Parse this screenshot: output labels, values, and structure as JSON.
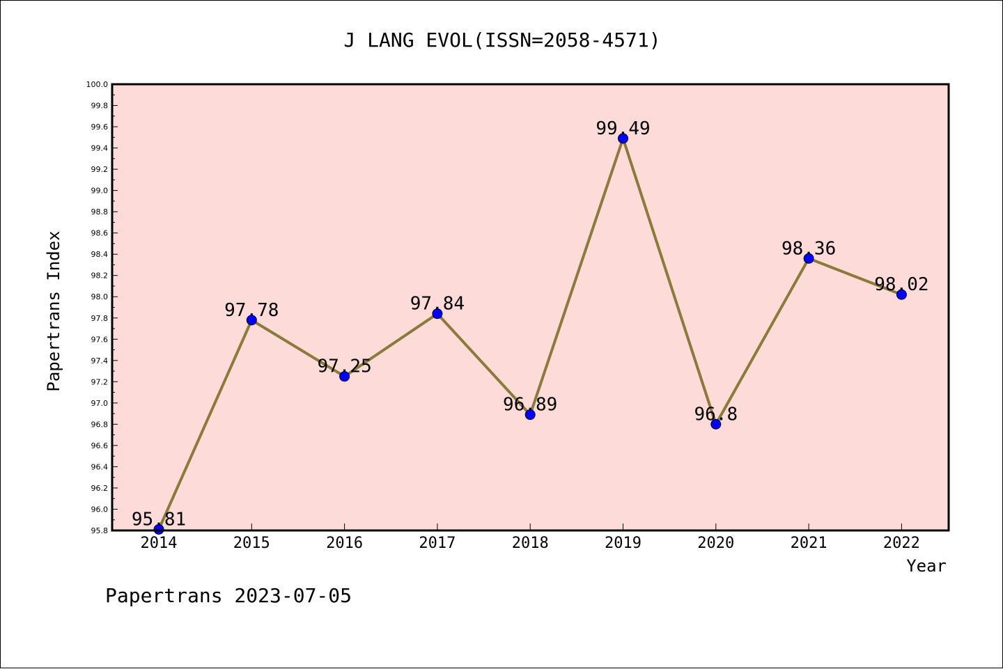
{
  "footer": "Papertrans 2023-07-05",
  "colors": {
    "plot_background": "#fddbd9",
    "line": "#8b7a3a",
    "marker": "#0000ff",
    "frame": "#000000"
  },
  "chart_data": {
    "type": "line",
    "title": "J LANG EVOL(ISSN=2058-4571)",
    "xlabel": "Year",
    "ylabel": "Papertrans Index",
    "categories": [
      "2014",
      "2015",
      "2016",
      "2017",
      "2018",
      "2019",
      "2020",
      "2021",
      "2022"
    ],
    "series": [
      {
        "values": [
          95.81,
          97.78,
          97.25,
          97.84,
          96.89,
          99.49,
          96.8,
          98.36,
          98.02
        ],
        "labels": [
          "95.81",
          "97.78",
          "97.25",
          "97.84",
          "96.89",
          "99.49",
          "96.8",
          "98.36",
          "98.02"
        ]
      }
    ],
    "ylim": [
      95.8,
      100.0
    ],
    "yticks": [
      "95.8",
      "96.0",
      "96.2",
      "96.4",
      "96.6",
      "96.8",
      "97.0",
      "97.2",
      "97.4",
      "97.6",
      "97.8",
      "98.0",
      "98.2",
      "98.4",
      "98.6",
      "98.8",
      "99.0",
      "99.2",
      "99.4",
      "99.6",
      "99.8",
      "100.0"
    ],
    "grid": false,
    "legend": "none"
  }
}
